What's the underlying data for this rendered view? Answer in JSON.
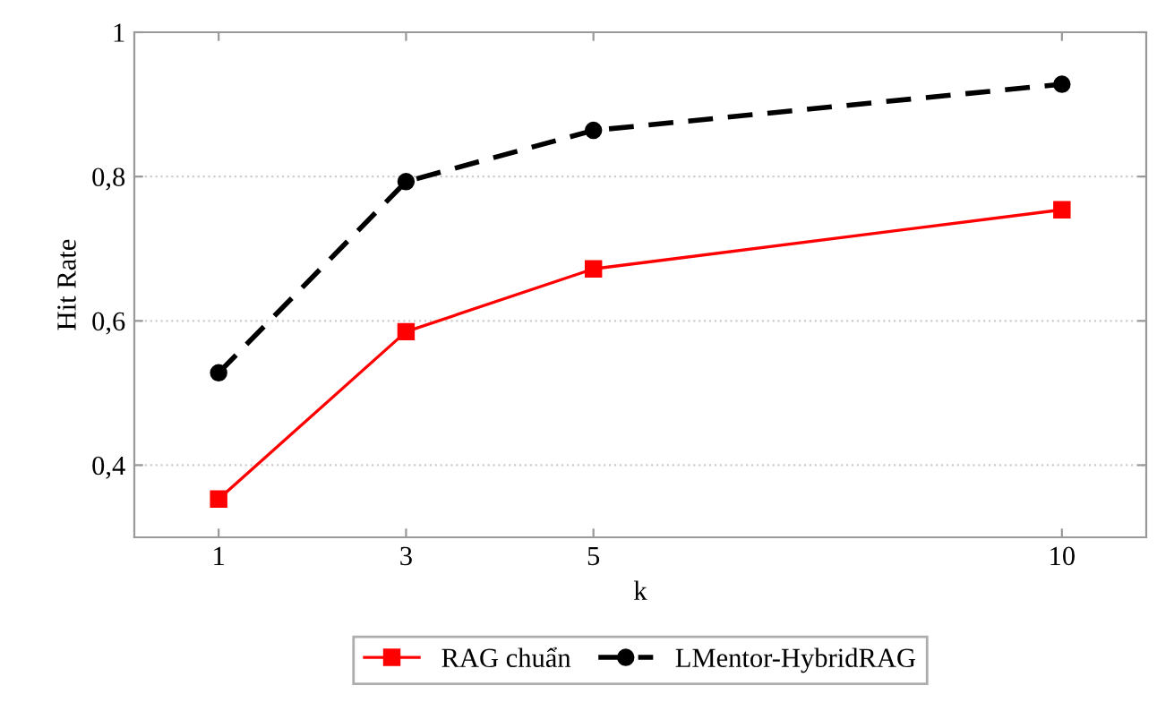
{
  "chart_data": {
    "type": "line",
    "xlabel": "k",
    "ylabel": "Hit Rate",
    "x": [
      1,
      3,
      5,
      10
    ],
    "series": [
      {
        "name": "RAG chuẩn",
        "color": "#ff0000",
        "values": [
          0.353,
          0.585,
          0.672,
          0.754
        ],
        "marker": "square",
        "line_style": "solid"
      },
      {
        "name": "LMentor-HybridRAG",
        "color": "#000000",
        "values": [
          0.528,
          0.793,
          0.864,
          0.928
        ],
        "marker": "circle",
        "line_style": "dashed"
      }
    ],
    "xlim": [
      0.1,
      10.9
    ],
    "xticks": [
      1,
      3,
      5,
      10
    ],
    "ylim": [
      0.3,
      1.0
    ],
    "yticks": [
      {
        "value": 0.4,
        "label": "0,4"
      },
      {
        "value": 0.6,
        "label": "0,6"
      },
      {
        "value": 0.8,
        "label": "0,8"
      },
      {
        "value": 1.0,
        "label": "1"
      }
    ],
    "grid": "y",
    "legend": "bottom"
  }
}
